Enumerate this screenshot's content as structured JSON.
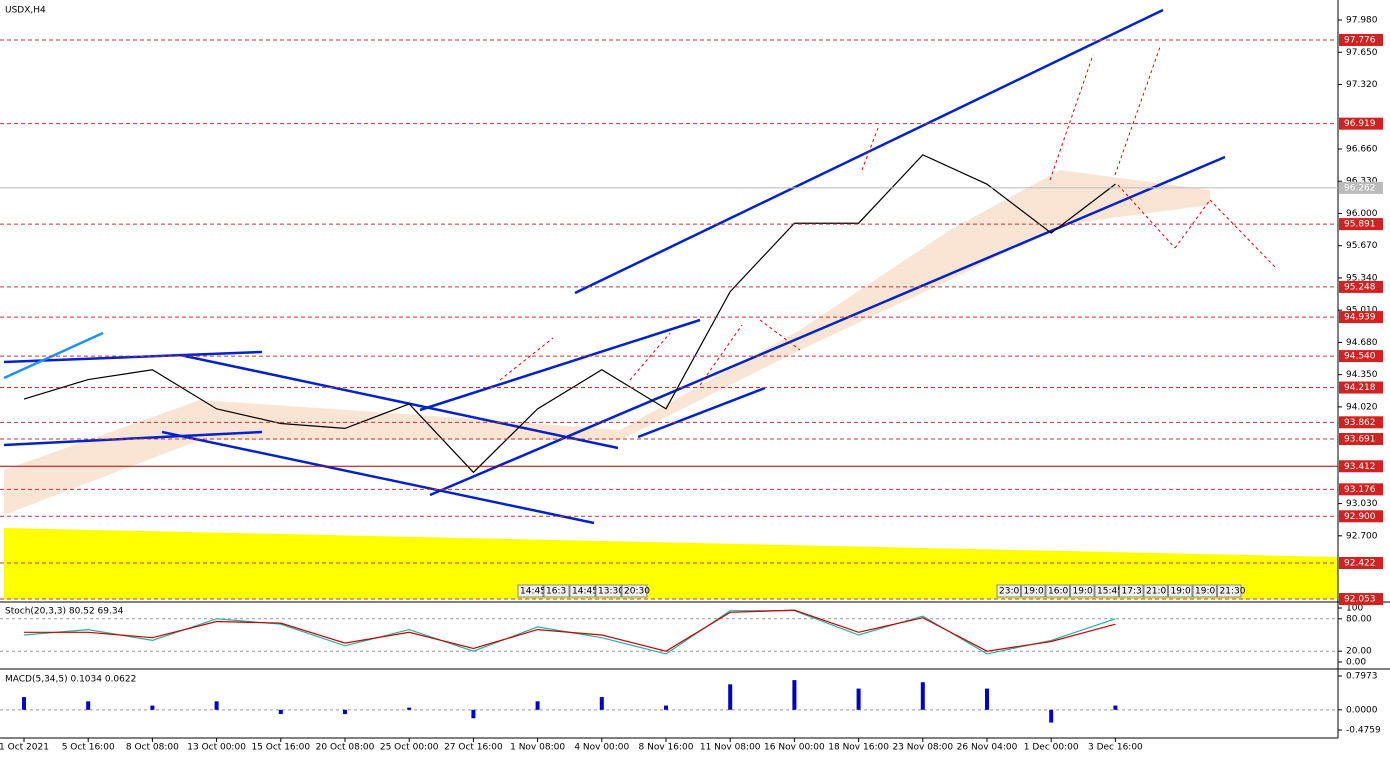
{
  "chart_data": [
    {
      "type": "line",
      "title": "USDX,H4",
      "categories": [
        "1 Oct 2021",
        "5 Oct 16:00",
        "8 Oct 08:00",
        "13 Oct 00:00",
        "15 Oct 16:00",
        "20 Oct 08:00",
        "25 Oct 00:00",
        "27 Oct 16:00",
        "1 Nov 08:00",
        "4 Nov 00:00",
        "8 Nov 16:00",
        "11 Nov 08:00",
        "16 Nov 00:00",
        "18 Nov 16:00",
        "23 Nov 08:00",
        "26 Nov 04:00",
        "1 Dec 00:00",
        "3 Dec 16:00"
      ],
      "series": [
        {
          "color": "#000000",
          "values": [
            94.1,
            94.3,
            94.4,
            94.0,
            93.85,
            93.8,
            94.05,
            93.35,
            94.0,
            94.4,
            94.0,
            95.2,
            95.9,
            95.9,
            96.6,
            96.3,
            95.8,
            96.3
          ]
        }
      ],
      "ylim": [
        92.033,
        98.144
      ],
      "yticks": [
        {
          "value": 97.98,
          "label": "97.980"
        },
        {
          "value": 97.65,
          "label": "97.650"
        },
        {
          "value": 97.32,
          "label": "97.320"
        },
        {
          "value": 96.66,
          "label": "96.660"
        },
        {
          "value": 96.33,
          "label": "96.330"
        },
        {
          "value": 96.0,
          "label": "96.000"
        },
        {
          "value": 95.67,
          "label": "95.670"
        },
        {
          "value": 95.34,
          "label": "95.340"
        },
        {
          "value": 95.01,
          "label": "95.010"
        },
        {
          "value": 94.68,
          "label": "94.680"
        },
        {
          "value": 94.35,
          "label": "94.350"
        },
        {
          "value": 94.02,
          "label": "94.020"
        },
        {
          "value": 93.03,
          "label": "93.030"
        },
        {
          "value": 92.7,
          "label": "92.700"
        }
      ],
      "levels": [
        {
          "value": 97.776,
          "label": "97.776"
        },
        {
          "value": 96.919,
          "label": "96.919"
        },
        {
          "value": 95.891,
          "label": "95.891"
        },
        {
          "value": 95.248,
          "label": "95.248"
        },
        {
          "value": 94.939,
          "label": "94.939"
        },
        {
          "value": 94.54,
          "label": "94.540"
        },
        {
          "value": 94.218,
          "label": "94.218"
        },
        {
          "value": 93.862,
          "label": "93.862"
        },
        {
          "value": 93.691,
          "label": "93.691"
        },
        {
          "value": 93.412,
          "label": "93.412"
        },
        {
          "value": 93.176,
          "label": "93.176"
        },
        {
          "value": 92.9,
          "label": "92.900"
        },
        {
          "value": 92.422,
          "label": "92.422"
        },
        {
          "value": 92.053,
          "label": "92.053"
        }
      ],
      "current_price": {
        "value": 96.262,
        "label": "96.262"
      },
      "time_marks_left": [
        "14:45",
        "16:3",
        "14:45",
        "13:30",
        "20:30"
      ],
      "time_marks_right": [
        "23:0",
        "19:0",
        "16:0",
        "19:0",
        "15:45",
        "17:3",
        "21:0",
        "19:0",
        "19:0",
        "21:30"
      ]
    },
    {
      "type": "line",
      "title": "Stoch(20,3,3) 80.52 69.34",
      "series": [
        {
          "color": "#20b2aa",
          "values": [
            50,
            60,
            40,
            80,
            70,
            30,
            60,
            20,
            65,
            45,
            15,
            95,
            95,
            50,
            85,
            15,
            40,
            80
          ]
        },
        {
          "color": "#cc0000",
          "values": [
            55,
            55,
            45,
            75,
            72,
            35,
            55,
            25,
            60,
            50,
            20,
            92,
            96,
            55,
            82,
            20,
            38,
            70
          ]
        }
      ],
      "ylim": [
        0,
        100
      ],
      "yticks": [
        100,
        {
          "value": 80,
          "label": "80.00"
        },
        {
          "value": 20,
          "label": "20.00"
        },
        {
          "value": 0,
          "label": "0.00"
        }
      ]
    },
    {
      "type": "bar",
      "title": "MACD(5,34,5) 0.1034 0.0622",
      "series": [
        {
          "color": "#0000cc",
          "values": [
            0.3,
            0.2,
            0.1,
            0.2,
            -0.1,
            -0.1,
            0.05,
            -0.2,
            0.2,
            0.3,
            0.1,
            0.6,
            0.7,
            0.5,
            0.65,
            0.5,
            -0.3,
            0.1
          ]
        }
      ],
      "ylim": [
        -0.6645,
        0.915
      ],
      "yticks": [
        {
          "value": 0.7973,
          "label": "0.7973"
        },
        {
          "value": 0,
          "label": "0.0000"
        },
        {
          "value": -0.4759,
          "label": "-0.4759"
        }
      ]
    }
  ]
}
